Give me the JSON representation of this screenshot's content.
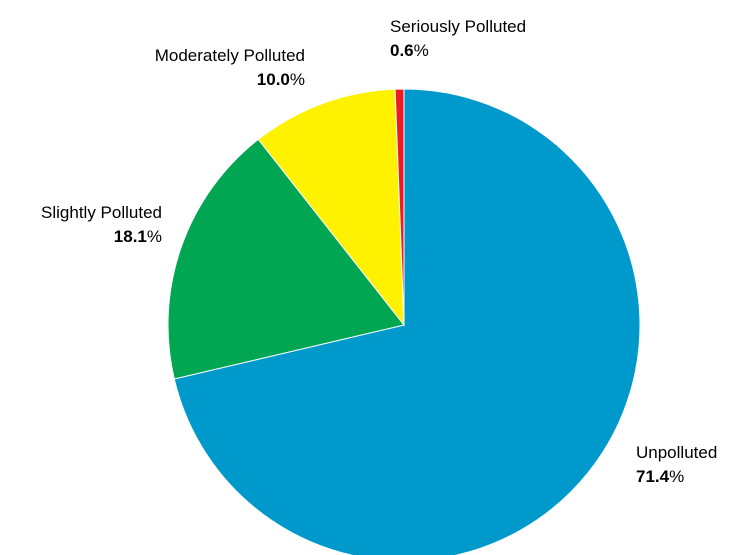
{
  "chart_data": {
    "type": "pie",
    "start_angle_deg": 0,
    "direction": "clockwise",
    "unit": "%",
    "slices": [
      {
        "label": "Unpolluted",
        "value": 71.4,
        "color": "#0099cc"
      },
      {
        "label": "Slightly Polluted",
        "value": 18.1,
        "color": "#00a651"
      },
      {
        "label": "Moderately Polluted",
        "value": 10.0,
        "color": "#fff200"
      },
      {
        "label": "Seriously Polluted",
        "value": 0.6,
        "color": "#ed1c24"
      }
    ]
  }
}
